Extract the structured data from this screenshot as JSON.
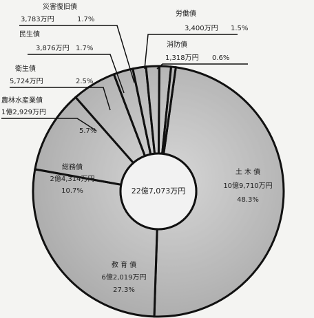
{
  "chart_data": {
    "type": "pie",
    "donut": true,
    "center_label": "22億7,073万円",
    "categories": [
      "土 木 債",
      "教 育 債",
      "総務債",
      "農林水産業債",
      "衛生債",
      "民生債",
      "災害復旧債",
      "労働債",
      "消防債"
    ],
    "values": [
      48.3,
      27.3,
      10.7,
      5.7,
      2.5,
      1.7,
      1.7,
      1.5,
      0.6
    ],
    "value_labels": [
      "48.3%",
      "27.3%",
      "10.7%",
      "5.7%",
      "2.5%",
      "1.7%",
      "1.7%",
      "1.5%",
      "0.6%"
    ],
    "amount_labels": [
      "10億9,710万円",
      "6億2,019万円",
      "2億4,314万円",
      "1億2,929万円",
      "5,724万円",
      "3,876万円",
      "3,783万円",
      "3,400万円",
      "1,318万円"
    ],
    "color": "#e4e4e4"
  }
}
